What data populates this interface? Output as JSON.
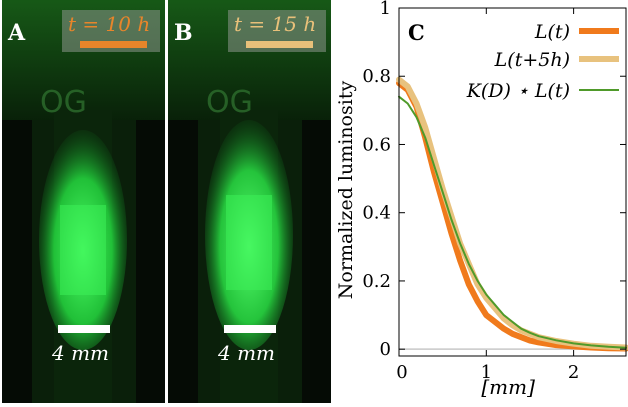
{
  "panels": [
    {
      "letter": "A",
      "time_label": "t = 10 h",
      "time_color": "#e8852a",
      "scale_label": "4 mm"
    },
    {
      "letter": "B",
      "time_label": "t = 15 h",
      "time_color": "#e8c07a",
      "scale_label": "4 mm"
    }
  ],
  "colors": {
    "glow": "#3dff5a",
    "background": "#050b05"
  },
  "chart_data": {
    "type": "line",
    "panel_letter": "C",
    "xlabel": "[mm]",
    "ylabel": "Normalized luminosity",
    "xlim": [
      0,
      2.6
    ],
    "ylim": [
      -0.02,
      1.0
    ],
    "x_ticks": [
      "0",
      "1",
      "2"
    ],
    "y_ticks": [
      "0",
      "0.2",
      "0.4",
      "0.6",
      "0.8",
      "1"
    ],
    "legend_position": "top-right",
    "series": [
      {
        "name": "L(t)",
        "color": "#f07a1c",
        "width": 6,
        "x": [
          0,
          0.1,
          0.2,
          0.3,
          0.4,
          0.5,
          0.6,
          0.7,
          0.8,
          0.9,
          1.0,
          1.1,
          1.2,
          1.3,
          1.4,
          1.5,
          1.6,
          1.8,
          2.0,
          2.2,
          2.4,
          2.6
        ],
        "y": [
          0.78,
          0.76,
          0.71,
          0.62,
          0.52,
          0.43,
          0.34,
          0.26,
          0.19,
          0.14,
          0.1,
          0.08,
          0.06,
          0.045,
          0.035,
          0.025,
          0.02,
          0.012,
          0.008,
          0.005,
          0.003,
          0.002
        ]
      },
      {
        "name": "L(t+5h)",
        "color": "#e8c27e",
        "width": 6,
        "x": [
          0,
          0.1,
          0.2,
          0.3,
          0.4,
          0.5,
          0.6,
          0.7,
          0.8,
          0.9,
          1.0,
          1.1,
          1.2,
          1.3,
          1.4,
          1.5,
          1.6,
          1.8,
          2.0,
          2.2,
          2.4,
          2.6
        ],
        "y": [
          0.79,
          0.77,
          0.72,
          0.65,
          0.56,
          0.47,
          0.39,
          0.31,
          0.25,
          0.19,
          0.15,
          0.12,
          0.09,
          0.07,
          0.055,
          0.045,
          0.035,
          0.024,
          0.016,
          0.01,
          0.007,
          0.005
        ]
      },
      {
        "name": "K(D) ⋆ L(t)",
        "color": "#4f9a2a",
        "width": 2,
        "x": [
          0,
          0.1,
          0.2,
          0.3,
          0.4,
          0.5,
          0.6,
          0.7,
          0.8,
          0.9,
          1.0,
          1.1,
          1.2,
          1.3,
          1.4,
          1.5,
          1.6,
          1.8,
          2.0,
          2.2,
          2.4,
          2.6
        ],
        "y": [
          0.74,
          0.72,
          0.68,
          0.62,
          0.54,
          0.46,
          0.38,
          0.31,
          0.25,
          0.2,
          0.16,
          0.13,
          0.1,
          0.08,
          0.06,
          0.048,
          0.038,
          0.026,
          0.017,
          0.011,
          0.007,
          0.004
        ]
      }
    ]
  }
}
